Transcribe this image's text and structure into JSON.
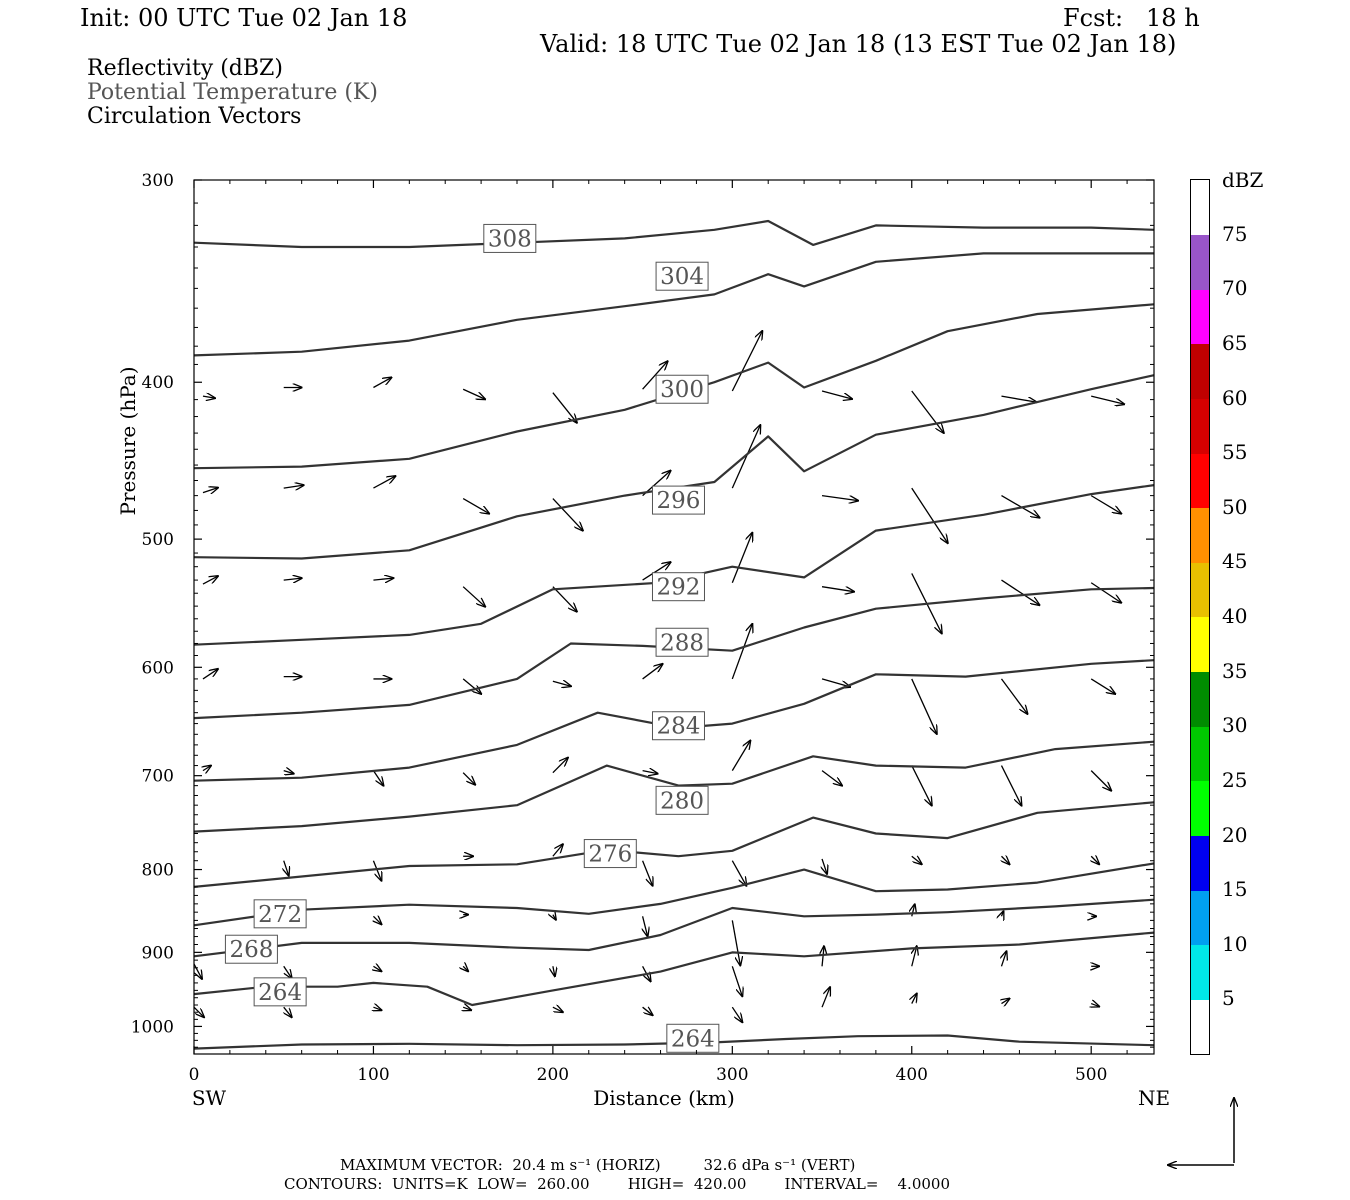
{
  "header": {
    "init": "Init: 00 UTC Tue 02 Jan 18",
    "fcst": "Fcst:   18 h",
    "valid": "Valid: 18 UTC Tue 02 Jan 18 (13 EST Tue 02 Jan 18)",
    "field_labels": [
      "Reflectivity (dBZ)",
      "Potential Temperature (K)",
      "Circulation Vectors"
    ]
  },
  "footer": {
    "line1": "MAXIMUM VECTOR:  20.4 m s⁻¹ (HORIZ)         32.6 dPa s⁻¹ (VERT)",
    "line2": "CONTOURS:  UNITS=K  LOW=  260.00        HIGH=  420.00        INTERVAL=    4.0000"
  },
  "colorbar": {
    "unit": "dBZ",
    "levels": [
      "5",
      "10",
      "15",
      "20",
      "25",
      "30",
      "35",
      "40",
      "45",
      "50",
      "55",
      "60",
      "65",
      "70",
      "75"
    ],
    "colors": [
      "#ffffff",
      "#00e8e8",
      "#00a0f0",
      "#0000f0",
      "#00ff00",
      "#00c800",
      "#008c00",
      "#ffff00",
      "#e8c000",
      "#ff9000",
      "#ff0000",
      "#d60000",
      "#c00000",
      "#ff00ff",
      "#9955c9",
      "#ffffff"
    ]
  },
  "chart_data": {
    "type": "line",
    "title": "",
    "xlabel": "Distance (km)",
    "ylabel": "Pressure (hPa)",
    "xlim": [
      0,
      535
    ],
    "ylim": [
      1040,
      300
    ],
    "y_scale": "log",
    "x_ticks": [
      "0",
      "100",
      "200",
      "300",
      "400",
      "500"
    ],
    "y_ticks": [
      "300",
      "400",
      "500",
      "600",
      "700",
      "800",
      "900",
      "1000"
    ],
    "x_endpoints": {
      "left": "SW",
      "right": "NE"
    },
    "grid": false,
    "series": [
      {
        "name": "308",
        "label": "308",
        "label_at": [
          176,
          326
        ],
        "x": [
          0,
          60,
          120,
          180,
          240,
          290,
          320,
          345,
          380,
          440,
          500,
          535
        ],
        "y": [
          328,
          330,
          330,
          328,
          326,
          322,
          318,
          329,
          320,
          321,
          321,
          322
        ]
      },
      {
        "name": "304",
        "label": "304",
        "label_at": [
          272,
          344
        ],
        "x": [
          0,
          60,
          120,
          180,
          240,
          290,
          320,
          340,
          380,
          440,
          500,
          535
        ],
        "y": [
          385,
          383,
          377,
          366,
          359,
          353,
          343,
          349,
          337,
          333,
          333,
          333
        ]
      },
      {
        "name": "300",
        "label": "300",
        "label_at": [
          272,
          404
        ],
        "x": [
          0,
          60,
          120,
          180,
          240,
          290,
          320,
          340,
          380,
          420,
          470,
          535
        ],
        "y": [
          452,
          451,
          446,
          429,
          416,
          400,
          389,
          403,
          388,
          372,
          363,
          358
        ]
      },
      {
        "name": "296",
        "label": "296",
        "label_at": [
          270,
          473
        ],
        "x": [
          0,
          60,
          120,
          180,
          240,
          290,
          320,
          340,
          380,
          440,
          500,
          535
        ],
        "y": [
          513,
          514,
          508,
          484,
          470,
          461,
          432,
          454,
          431,
          419,
          404,
          396
        ]
      },
      {
        "name": "292",
        "label": "292",
        "label_at": [
          270,
          535
        ],
        "x": [
          0,
          60,
          120,
          160,
          200,
          260,
          300,
          340,
          380,
          440,
          500,
          535
        ],
        "y": [
          581,
          577,
          573,
          564,
          537,
          532,
          520,
          528,
          494,
          483,
          469,
          463
        ]
      },
      {
        "name": "288",
        "label": "288",
        "label_at": [
          272,
          579
        ],
        "x": [
          0,
          60,
          120,
          180,
          210,
          250,
          300,
          340,
          380,
          440,
          500,
          535
        ],
        "y": [
          645,
          640,
          633,
          610,
          580,
          582,
          586,
          567,
          552,
          544,
          537,
          536
        ]
      },
      {
        "name": "284",
        "label": "284",
        "label_at": [
          270,
          652
        ],
        "x": [
          0,
          60,
          120,
          180,
          225,
          270,
          300,
          340,
          380,
          430,
          500,
          535
        ],
        "y": [
          705,
          702,
          692,
          670,
          640,
          654,
          650,
          632,
          606,
          608,
          597,
          594
        ]
      },
      {
        "name": "280",
        "label": "280",
        "label_at": [
          272,
          725
        ],
        "x": [
          0,
          60,
          120,
          180,
          230,
          270,
          300,
          345,
          380,
          430,
          480,
          535
        ],
        "y": [
          758,
          752,
          742,
          730,
          690,
          710,
          708,
          681,
          690,
          692,
          674,
          667
        ]
      },
      {
        "name": "276",
        "label": "276",
        "label_at": [
          232,
          782
        ],
        "x": [
          0,
          60,
          120,
          180,
          230,
          270,
          300,
          345,
          380,
          420,
          470,
          535
        ],
        "y": [
          820,
          808,
          796,
          794,
          778,
          785,
          779,
          743,
          760,
          765,
          738,
          727
        ]
      },
      {
        "name": "272",
        "label": "272",
        "label_at": [
          48,
          852
        ],
        "x": [
          0,
          60,
          120,
          180,
          220,
          260,
          300,
          340,
          380,
          420,
          470,
          535
        ],
        "y": [
          866,
          847,
          841,
          845,
          852,
          840,
          821,
          800,
          825,
          823,
          815,
          793
        ]
      },
      {
        "name": "268",
        "label": "268",
        "label_at": [
          32,
          896
        ],
        "x": [
          0,
          60,
          120,
          180,
          220,
          260,
          300,
          340,
          380,
          420,
          480,
          535
        ],
        "y": [
          905,
          888,
          888,
          894,
          897,
          878,
          845,
          855,
          853,
          850,
          843,
          835
        ]
      },
      {
        "name": "264",
        "label": "264",
        "label_at": [
          48,
          952
        ],
        "x": [
          0,
          40,
          80,
          100,
          130,
          155,
          200,
          260,
          300,
          340,
          400,
          460,
          535
        ],
        "y": [
          955,
          945,
          945,
          940,
          945,
          970,
          950,
          925,
          900,
          905,
          895,
          890,
          875
        ]
      },
      {
        "name": "264",
        "label": "264",
        "label_at": [
          278,
          1017
        ],
        "x": [
          0,
          60,
          120,
          180,
          240,
          290,
          330,
          370,
          420,
          460,
          535
        ],
        "y": [
          1032,
          1026,
          1025,
          1027,
          1026,
          1023,
          1018,
          1014,
          1013,
          1022,
          1027
        ]
      }
    ],
    "vectors": [
      {
        "x": 5,
        "p": 408,
        "dx": 12,
        "dp": 2
      },
      {
        "x": 50,
        "p": 403,
        "dx": 18,
        "dp": 0
      },
      {
        "x": 100,
        "p": 403,
        "dx": 18,
        "dp": -10
      },
      {
        "x": 150,
        "p": 404,
        "dx": 22,
        "dp": 10
      },
      {
        "x": 200,
        "p": 406,
        "dx": 24,
        "dp": 30
      },
      {
        "x": 250,
        "p": 404,
        "dx": 25,
        "dp": -28
      },
      {
        "x": 300,
        "p": 405,
        "dx": 30,
        "dp": -60
      },
      {
        "x": 350,
        "p": 405,
        "dx": 30,
        "dp": 8
      },
      {
        "x": 400,
        "p": 405,
        "dx": 32,
        "dp": 42
      },
      {
        "x": 450,
        "p": 408,
        "dx": 35,
        "dp": 6
      },
      {
        "x": 500,
        "p": 408,
        "dx": 33,
        "dp": 8
      },
      {
        "x": 5,
        "p": 468,
        "dx": 15,
        "dp": -5
      },
      {
        "x": 50,
        "p": 465,
        "dx": 20,
        "dp": -3
      },
      {
        "x": 100,
        "p": 465,
        "dx": 22,
        "dp": -12
      },
      {
        "x": 150,
        "p": 472,
        "dx": 26,
        "dp": 15
      },
      {
        "x": 200,
        "p": 472,
        "dx": 30,
        "dp": 32
      },
      {
        "x": 250,
        "p": 470,
        "dx": 28,
        "dp": -25
      },
      {
        "x": 300,
        "p": 465,
        "dx": 28,
        "dp": -63
      },
      {
        "x": 350,
        "p": 470,
        "dx": 36,
        "dp": 5
      },
      {
        "x": 400,
        "p": 465,
        "dx": 36,
        "dp": 55
      },
      {
        "x": 450,
        "p": 470,
        "dx": 38,
        "dp": 22
      },
      {
        "x": 500,
        "p": 470,
        "dx": 30,
        "dp": 18
      },
      {
        "x": 5,
        "p": 533,
        "dx": 15,
        "dp": -8
      },
      {
        "x": 50,
        "p": 530,
        "dx": 18,
        "dp": -2
      },
      {
        "x": 100,
        "p": 530,
        "dx": 20,
        "dp": -2
      },
      {
        "x": 150,
        "p": 535,
        "dx": 22,
        "dp": 20
      },
      {
        "x": 200,
        "p": 535,
        "dx": 24,
        "dp": 25
      },
      {
        "x": 250,
        "p": 530,
        "dx": 28,
        "dp": -18
      },
      {
        "x": 300,
        "p": 532,
        "dx": 20,
        "dp": -50
      },
      {
        "x": 350,
        "p": 535,
        "dx": 32,
        "dp": 5
      },
      {
        "x": 400,
        "p": 525,
        "dx": 30,
        "dp": 60
      },
      {
        "x": 450,
        "p": 530,
        "dx": 38,
        "dp": 25
      },
      {
        "x": 500,
        "p": 532,
        "dx": 30,
        "dp": 20
      },
      {
        "x": 5,
        "p": 610,
        "dx": 15,
        "dp": -10
      },
      {
        "x": 50,
        "p": 608,
        "dx": 18,
        "dp": 0
      },
      {
        "x": 100,
        "p": 610,
        "dx": 18,
        "dp": 0
      },
      {
        "x": 150,
        "p": 610,
        "dx": 18,
        "dp": 15
      },
      {
        "x": 200,
        "p": 612,
        "dx": 18,
        "dp": 5
      },
      {
        "x": 250,
        "p": 610,
        "dx": 20,
        "dp": -15
      },
      {
        "x": 300,
        "p": 610,
        "dx": 20,
        "dp": -55
      },
      {
        "x": 350,
        "p": 610,
        "dx": 28,
        "dp": 8
      },
      {
        "x": 400,
        "p": 610,
        "dx": 25,
        "dp": 55
      },
      {
        "x": 450,
        "p": 610,
        "dx": 26,
        "dp": 35
      },
      {
        "x": 500,
        "p": 610,
        "dx": 24,
        "dp": 15
      },
      {
        "x": 5,
        "p": 695,
        "dx": 8,
        "dp": -5
      },
      {
        "x": 50,
        "p": 695,
        "dx": 10,
        "dp": 3
      },
      {
        "x": 100,
        "p": 695,
        "dx": 10,
        "dp": 15
      },
      {
        "x": 150,
        "p": 697,
        "dx": 12,
        "dp": 12
      },
      {
        "x": 200,
        "p": 697,
        "dx": 15,
        "dp": -15
      },
      {
        "x": 250,
        "p": 695,
        "dx": 15,
        "dp": 3
      },
      {
        "x": 300,
        "p": 695,
        "dx": 18,
        "dp": -30
      },
      {
        "x": 350,
        "p": 695,
        "dx": 20,
        "dp": 15
      },
      {
        "x": 400,
        "p": 690,
        "dx": 20,
        "dp": 40
      },
      {
        "x": 450,
        "p": 690,
        "dx": 20,
        "dp": 40
      },
      {
        "x": 500,
        "p": 695,
        "dx": 20,
        "dp": 20
      },
      {
        "x": 50,
        "p": 790,
        "dx": 5,
        "dp": 15
      },
      {
        "x": 100,
        "p": 790,
        "dx": 8,
        "dp": 20
      },
      {
        "x": 150,
        "p": 785,
        "dx": 10,
        "dp": 0
      },
      {
        "x": 200,
        "p": 785,
        "dx": 10,
        "dp": -12
      },
      {
        "x": 250,
        "p": 790,
        "dx": 10,
        "dp": 25
      },
      {
        "x": 300,
        "p": 790,
        "dx": 14,
        "dp": 25
      },
      {
        "x": 350,
        "p": 788,
        "dx": 5,
        "dp": 15
      },
      {
        "x": 400,
        "p": 785,
        "dx": 10,
        "dp": 8
      },
      {
        "x": 450,
        "p": 785,
        "dx": 8,
        "dp": 8
      },
      {
        "x": 500,
        "p": 785,
        "dx": 8,
        "dp": 8
      },
      {
        "x": 50,
        "p": 855,
        "dx": 5,
        "dp": 8
      },
      {
        "x": 100,
        "p": 855,
        "dx": 8,
        "dp": 8
      },
      {
        "x": 150,
        "p": 853,
        "dx": 5,
        "dp": 0
      },
      {
        "x": 200,
        "p": 853,
        "dx": 3,
        "dp": 5
      },
      {
        "x": 250,
        "p": 855,
        "dx": 5,
        "dp": 20
      },
      {
        "x": 300,
        "p": 860,
        "dx": 8,
        "dp": 45
      },
      {
        "x": 400,
        "p": 855,
        "dx": 3,
        "dp": -12
      },
      {
        "x": 450,
        "p": 855,
        "dx": 2,
        "dp": -5
      },
      {
        "x": 500,
        "p": 855,
        "dx": 5,
        "dp": 0
      },
      {
        "x": 0,
        "p": 915,
        "dx": 8,
        "dp": 15
      },
      {
        "x": 50,
        "p": 918,
        "dx": 8,
        "dp": 12
      },
      {
        "x": 100,
        "p": 918,
        "dx": 8,
        "dp": 5
      },
      {
        "x": 150,
        "p": 918,
        "dx": 5,
        "dp": 5
      },
      {
        "x": 200,
        "p": 918,
        "dx": 2,
        "dp": 10
      },
      {
        "x": 250,
        "p": 918,
        "dx": 8,
        "dp": 15
      },
      {
        "x": 300,
        "p": 918,
        "dx": 10,
        "dp": 30
      },
      {
        "x": 350,
        "p": 918,
        "dx": 2,
        "dp": -20
      },
      {
        "x": 400,
        "p": 918,
        "dx": 5,
        "dp": -20
      },
      {
        "x": 450,
        "p": 918,
        "dx": 5,
        "dp": -15
      },
      {
        "x": 500,
        "p": 918,
        "dx": 8,
        "dp": 0
      },
      {
        "x": 0,
        "p": 973,
        "dx": 10,
        "dp": 10
      },
      {
        "x": 50,
        "p": 973,
        "dx": 8,
        "dp": 10
      },
      {
        "x": 100,
        "p": 973,
        "dx": 8,
        "dp": 3
      },
      {
        "x": 150,
        "p": 973,
        "dx": 8,
        "dp": 3
      },
      {
        "x": 200,
        "p": 973,
        "dx": 10,
        "dp": 5
      },
      {
        "x": 250,
        "p": 973,
        "dx": 10,
        "dp": 8
      },
      {
        "x": 300,
        "p": 973,
        "dx": 10,
        "dp": 15
      },
      {
        "x": 350,
        "p": 973,
        "dx": 8,
        "dp": -20
      },
      {
        "x": 400,
        "p": 968,
        "dx": 5,
        "dp": -10
      },
      {
        "x": 450,
        "p": 968,
        "dx": 8,
        "dp": -5
      },
      {
        "x": 500,
        "p": 968,
        "dx": 8,
        "dp": 3
      }
    ]
  }
}
